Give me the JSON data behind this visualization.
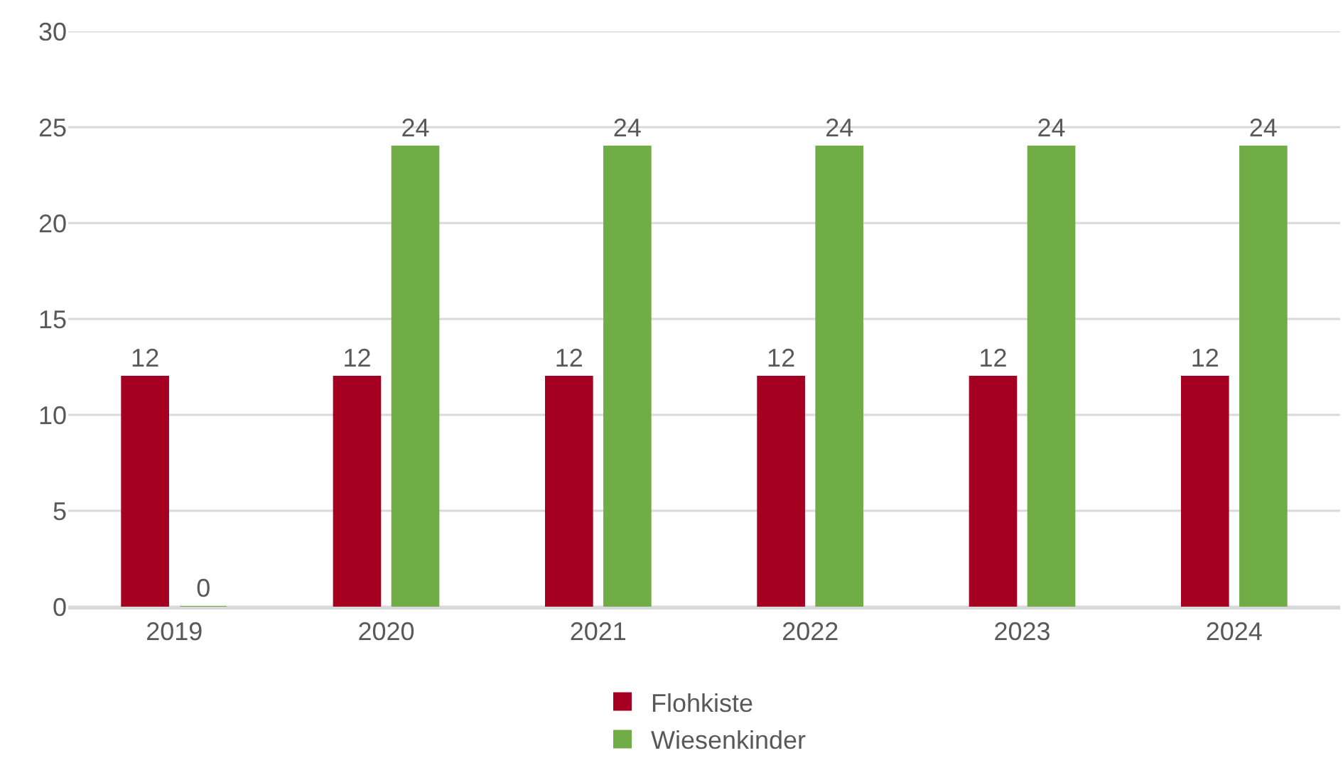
{
  "chart_data": {
    "type": "bar",
    "categories": [
      "2019",
      "2020",
      "2021",
      "2022",
      "2023",
      "2024"
    ],
    "series": [
      {
        "name": "Flohkiste",
        "color": "#a50021",
        "values": [
          12,
          12,
          12,
          12,
          12,
          12
        ]
      },
      {
        "name": "Wiesenkinder",
        "color": "#70ad47",
        "values": [
          0,
          24,
          24,
          24,
          24,
          24
        ]
      }
    ],
    "ylim": [
      0,
      30
    ],
    "yticks": [
      0,
      5,
      10,
      15,
      20,
      25,
      30
    ],
    "grid": "y",
    "legend": "bottom",
    "data_labels": true
  }
}
